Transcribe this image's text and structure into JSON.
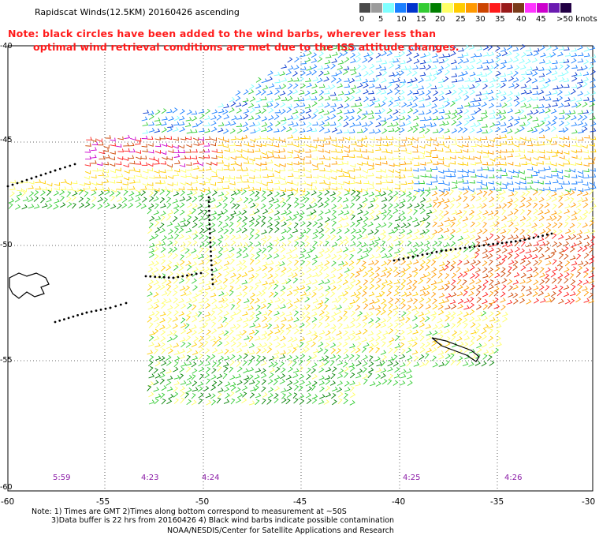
{
  "title": "Rapidscat Winds(12.5KM) 20160426 ascending",
  "note": {
    "line1": "Note: black circles have been added to the wind barbs, wherever less than",
    "line2": "optimal wind retrieval conditions are met due to the ISS attitude changes."
  },
  "colorbar": {
    "labels": [
      "0",
      "5",
      "10",
      "15",
      "20",
      "25",
      "30",
      "35",
      "40",
      "45",
      ">50 knots"
    ],
    "colors": [
      "#4a4a4a",
      "#9c9c9c",
      "#7fffff",
      "#1a7fff",
      "#0033cc",
      "#33cc33",
      "#007f00",
      "#ffff66",
      "#ffcc00",
      "#ff9900",
      "#cc4400",
      "#ff1a1a",
      "#991a1a",
      "#7a3a1a",
      "#ff33ff",
      "#cc00cc",
      "#6a1ab0",
      "#220044"
    ]
  },
  "axes": {
    "y_labels": [
      "-40",
      "-45",
      "-50",
      "-55",
      "-60"
    ],
    "x_labels": [
      "-60",
      "-55",
      "-50",
      "-45",
      "-40",
      "-35",
      "-30"
    ]
  },
  "times": [
    "5:59",
    "4:23",
    "4:24",
    "4:25",
    "4:26"
  ],
  "footer": {
    "line1": "Note: 1) Times are GMT 2)Times along bottom correspond to measurement at ~50S",
    "line2": "3)Data buffer is 22 hrs from 20160426 4) Black wind barbs indicate possible contamination",
    "line3": "NOAA/NESDIS/Center for Satellite Applications and Research"
  }
}
